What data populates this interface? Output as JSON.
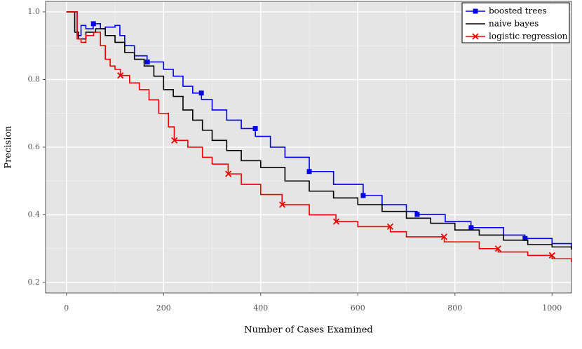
{
  "chart_data": {
    "type": "line",
    "x_label": "Number of Cases Examined",
    "y_label": "Precision",
    "xlim": [
      -43,
      1040
    ],
    "ylim": [
      0.169,
      1.031
    ],
    "xticks": [
      0,
      200,
      400,
      600,
      800,
      1000
    ],
    "yticks": [
      {
        "value": 0.2,
        "label": "0.2"
      },
      {
        "value": 0.4,
        "label": "0.4"
      },
      {
        "value": 0.6,
        "label": "0.6"
      },
      {
        "value": 0.8,
        "label": "0.8"
      },
      {
        "value": 1.0,
        "label": "1.0"
      }
    ],
    "grid": true,
    "legend": "top-right",
    "series": [
      {
        "name": "boosted trees",
        "color": "#0000ee",
        "marker": "square",
        "x": [
          0,
          20,
          22,
          30,
          40,
          55,
          70,
          80,
          100,
          110,
          120,
          140,
          166,
          200,
          220,
          240,
          260,
          278,
          300,
          330,
          360,
          389,
          420,
          450,
          500,
          550,
          611,
          650,
          700,
          722,
          780,
          833,
          900,
          944,
          1000,
          1040
        ],
        "values": [
          1.0,
          1.0,
          0.93,
          0.96,
          0.95,
          0.965,
          0.95,
          0.955,
          0.96,
          0.93,
          0.9,
          0.87,
          0.852,
          0.83,
          0.81,
          0.78,
          0.76,
          0.741,
          0.71,
          0.68,
          0.655,
          0.632,
          0.6,
          0.57,
          0.528,
          0.49,
          0.457,
          0.43,
          0.41,
          0.401,
          0.38,
          0.362,
          0.34,
          0.33,
          0.315,
          0.303
        ]
      },
      {
        "name": "naive bayes",
        "color": "#000000",
        "marker": "none",
        "x": [
          0,
          15,
          17,
          25,
          40,
          60,
          80,
          100,
          110,
          120,
          140,
          160,
          180,
          200,
          220,
          240,
          260,
          280,
          300,
          330,
          360,
          400,
          450,
          500,
          550,
          600,
          650,
          700,
          750,
          800,
          850,
          900,
          950,
          1000,
          1040
        ],
        "values": [
          1.0,
          1.0,
          0.94,
          0.92,
          0.94,
          0.95,
          0.93,
          0.91,
          0.91,
          0.88,
          0.86,
          0.84,
          0.81,
          0.77,
          0.75,
          0.71,
          0.68,
          0.65,
          0.62,
          0.59,
          0.56,
          0.54,
          0.5,
          0.47,
          0.45,
          0.43,
          0.41,
          0.39,
          0.375,
          0.355,
          0.34,
          0.325,
          0.312,
          0.305,
          0.297
        ]
      },
      {
        "name": "logistic regression",
        "color": "#ee0000",
        "marker": "cross",
        "x": [
          0,
          20,
          22,
          30,
          40,
          56,
          70,
          80,
          90,
          100,
          111,
          130,
          150,
          170,
          190,
          210,
          222,
          250,
          280,
          300,
          333,
          360,
          400,
          444,
          500,
          555,
          600,
          667,
          700,
          778,
          850,
          889,
          950,
          1000,
          1040
        ],
        "values": [
          1.0,
          1.0,
          0.92,
          0.91,
          0.93,
          0.94,
          0.9,
          0.86,
          0.84,
          0.83,
          0.812,
          0.79,
          0.77,
          0.74,
          0.7,
          0.66,
          0.62,
          0.6,
          0.57,
          0.55,
          0.521,
          0.49,
          0.46,
          0.43,
          0.4,
          0.38,
          0.365,
          0.35,
          0.335,
          0.32,
          0.3,
          0.29,
          0.28,
          0.27,
          0.26
        ]
      }
    ]
  }
}
